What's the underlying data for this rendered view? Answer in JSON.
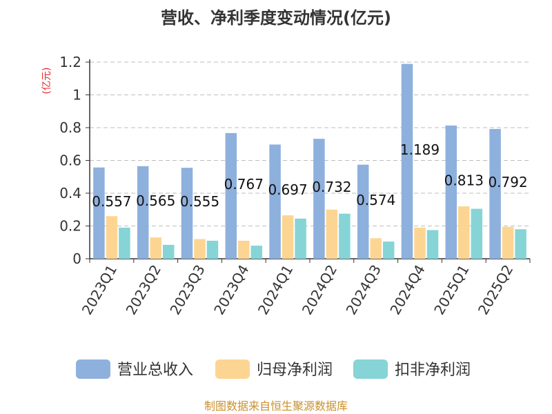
{
  "chart_data": {
    "type": "bar",
    "title": "营收、净利季度变动情况(亿元)",
    "ylabel": "(亿元)",
    "xlabel": "",
    "ylim": [
      0,
      1.2
    ],
    "yticks": [
      0,
      0.2,
      0.4,
      0.6,
      0.8,
      1,
      1.2
    ],
    "ytick_labels": [
      "0",
      "0.2",
      "0.4",
      "0.6",
      "0.8",
      "1",
      "1.2"
    ],
    "grid": true,
    "legend_position": "bottom",
    "categories": [
      "2023Q1",
      "2023Q2",
      "2023Q3",
      "2023Q4",
      "2024Q1",
      "2024Q2",
      "2024Q3",
      "2024Q4",
      "2025Q1",
      "2025Q2"
    ],
    "series": [
      {
        "name": "营业总收入",
        "color": "#8eb0dd",
        "values": [
          0.557,
          0.565,
          0.555,
          0.767,
          0.697,
          0.732,
          0.574,
          1.189,
          0.813,
          0.792
        ],
        "data_labels": [
          "0.557",
          "0.565",
          "0.555",
          "0.767",
          "0.697",
          "0.732",
          "0.574",
          "1.189",
          "0.813",
          "0.792"
        ]
      },
      {
        "name": "归母净利润",
        "color": "#fdd592",
        "values": [
          0.26,
          0.13,
          0.12,
          0.11,
          0.265,
          0.3,
          0.125,
          0.19,
          0.32,
          0.195
        ]
      },
      {
        "name": "扣非净利润",
        "color": "#86d4d6",
        "values": [
          0.19,
          0.085,
          0.11,
          0.08,
          0.245,
          0.275,
          0.105,
          0.175,
          0.305,
          0.18
        ]
      }
    ],
    "footer": "制图数据来自恒生聚源数据库"
  }
}
